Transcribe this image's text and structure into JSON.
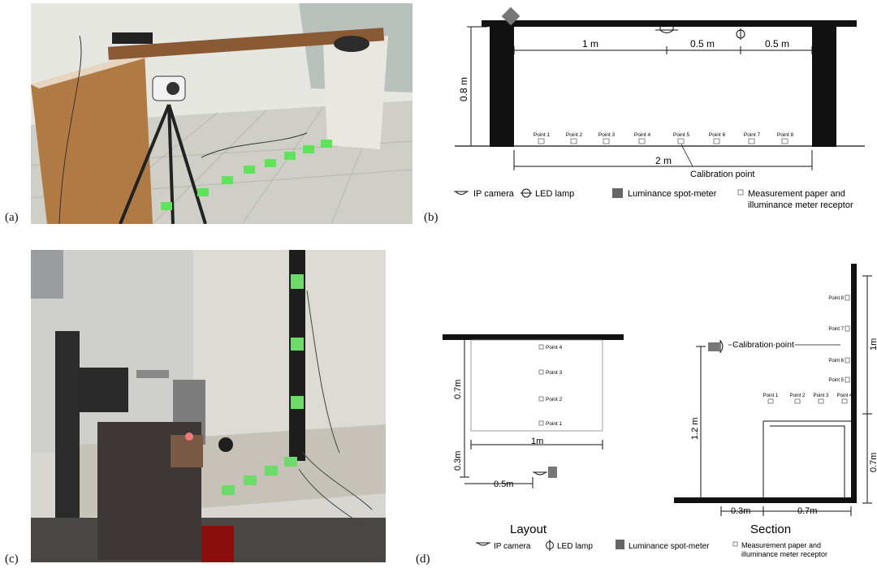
{
  "panels": {
    "a": "(a)",
    "b": "(b)",
    "c": "(c)",
    "d": "(d)"
  },
  "diagram_b": {
    "dims": {
      "height": "0.8 m",
      "d1": "1 m",
      "d2": "0.5 m",
      "d3": "0.5 m",
      "total": "2 m"
    },
    "points": [
      "Point 1",
      "Point 2",
      "Point 3",
      "Point 4",
      "Point 5",
      "Point 6",
      "Point 7",
      "Point 8"
    ],
    "calibration": "Calibration point",
    "legend": {
      "ip_camera": "IP camera",
      "led_lamp": "LED lamp",
      "spot_meter": "Luminance spot-meter",
      "paper_line1": "Measurement paper and",
      "paper_line2": "illuminance meter receptor"
    }
  },
  "diagram_d": {
    "layout": {
      "title": "Layout",
      "points": [
        "Point 4",
        "Point 3",
        "Point 2",
        "Point 1"
      ],
      "dims": {
        "height": "0.7m",
        "width": "1m",
        "offset": "0.3m",
        "cam_offset": "0.5m"
      }
    },
    "section": {
      "title": "Section",
      "wall_points": [
        "Point 8",
        "Point 7",
        "Point 6",
        "Point 5"
      ],
      "table_points": [
        "Point 1",
        "Point 2",
        "Point 3",
        "Point 4"
      ],
      "calibration": "Calibration point",
      "dims": {
        "height": "1.2 m",
        "upper": "1m",
        "lower": "0.7m",
        "base_left": "0.3m",
        "base_right": "0.7m"
      }
    },
    "legend": {
      "ip_camera": "IP camera",
      "led_lamp": "LED lamp",
      "spot_meter": "Luminance spot-meter",
      "paper_line1": "Measurement paper and",
      "paper_line2": "illuminance meter receptor"
    }
  }
}
